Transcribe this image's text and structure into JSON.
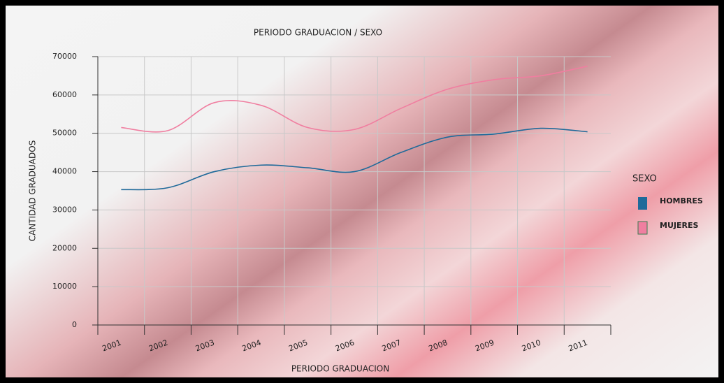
{
  "chart_data": {
    "type": "line",
    "title": "PERIODO GRADUACION / SEXO",
    "x_label": "PERIODO GRADUACION",
    "y_label": "CANTIDAD GRADUADOS",
    "categories": [
      "2001",
      "2002",
      "2003",
      "2004",
      "2005",
      "2006",
      "2007",
      "2008",
      "2009",
      "2010",
      "2011"
    ],
    "series": [
      {
        "name": "HOMBRES",
        "color": "#1f6a9a",
        "values": [
          35300,
          35800,
          40000,
          41700,
          41000,
          40000,
          45000,
          49000,
          49800,
          51300,
          50400
        ]
      },
      {
        "name": "MUJERES",
        "color": "#f07ea0",
        "values": [
          51500,
          50700,
          58000,
          57300,
          51500,
          51000,
          56500,
          61500,
          64000,
          65000,
          67500
        ]
      }
    ],
    "ylim": [
      0,
      70000
    ],
    "yticks": [
      0,
      10000,
      20000,
      30000,
      40000,
      50000,
      60000,
      70000
    ],
    "grid": true,
    "legend": {
      "title": "SEXO",
      "position": "right"
    }
  }
}
